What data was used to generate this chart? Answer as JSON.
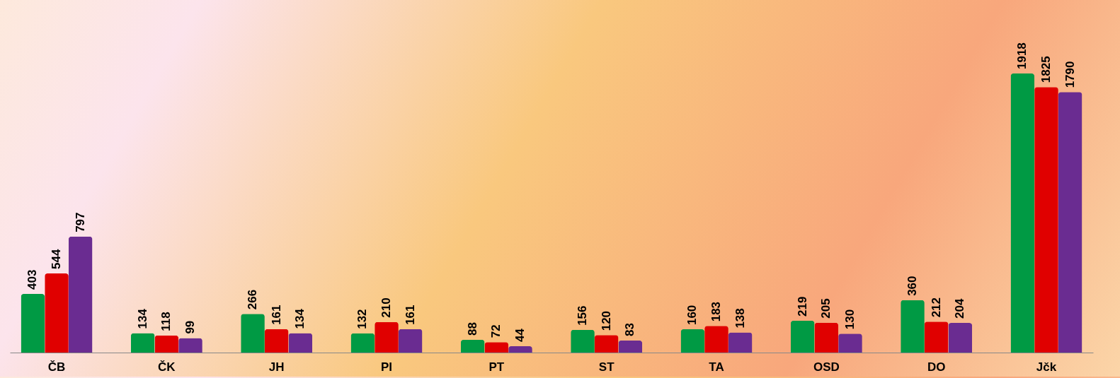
{
  "chart_data": {
    "type": "bar",
    "categories": [
      "ČB",
      "ČK",
      "JH",
      "PI",
      "PT",
      "ST",
      "TA",
      "OSD",
      "DO",
      "Jčk"
    ],
    "series": [
      {
        "color": "#009a44",
        "values": [
          403,
          134,
          266,
          132,
          88,
          156,
          160,
          219,
          360,
          1918
        ]
      },
      {
        "color": "#e00000",
        "values": [
          544,
          118,
          161,
          210,
          72,
          120,
          183,
          205,
          212,
          1825
        ]
      },
      {
        "color": "#6a2c91",
        "values": [
          797,
          99,
          134,
          161,
          44,
          83,
          138,
          130,
          204,
          1790
        ]
      }
    ],
    "data_labels": true,
    "legend": false
  }
}
